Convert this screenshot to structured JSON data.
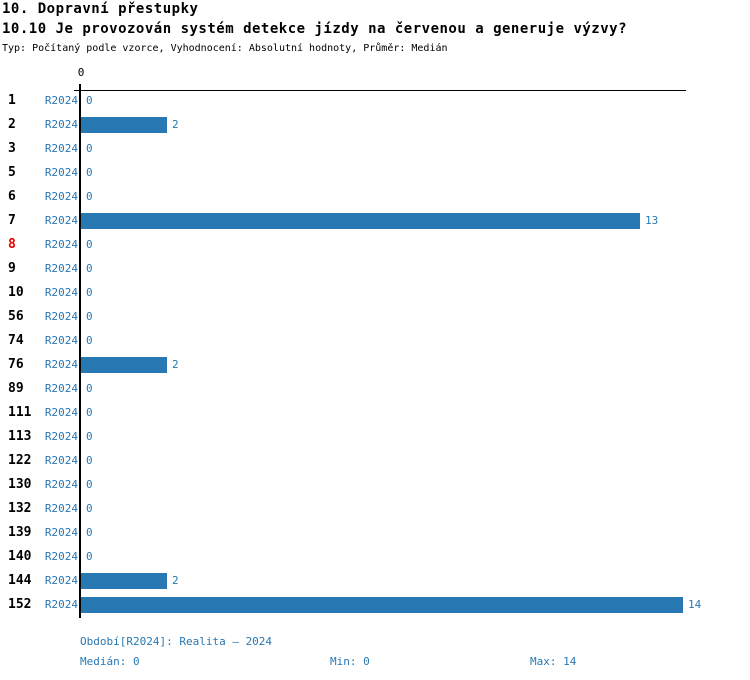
{
  "header": {
    "title": "10. Dopravní přestupky",
    "subtitle": "10.10 Je provozován systém detekce jízdy na červenou a generuje výzvy?",
    "meta": "Typ: Počítaný podle vzorce, Vyhodnocení: Absolutní hodnoty, Průměr: Medián"
  },
  "chart_data": {
    "type": "bar",
    "orientation": "horizontal",
    "title": "10.10 Je provozován systém detekce jízdy na červenou a generuje výzvy?",
    "series_label": "R2024",
    "x_tick_label": "0",
    "xlim": [
      0,
      14
    ],
    "grid": false,
    "categories": [
      "1",
      "2",
      "3",
      "5",
      "6",
      "7",
      "8",
      "9",
      "10",
      "56",
      "74",
      "76",
      "89",
      "111",
      "113",
      "122",
      "130",
      "132",
      "139",
      "140",
      "144",
      "152"
    ],
    "values": [
      0,
      2,
      0,
      0,
      0,
      13,
      0,
      0,
      0,
      0,
      0,
      2,
      0,
      0,
      0,
      0,
      0,
      0,
      0,
      0,
      2,
      14
    ],
    "highlighted_category": "8",
    "bar_color": "#2878b4"
  },
  "footer": {
    "period": "Období[R2024]: Realita – 2024",
    "median": "Medián: 0",
    "min": "Min: 0",
    "max": "Max: 14"
  },
  "colors": {
    "bar": "#2878b4",
    "blue_text": "#2878b4",
    "highlight_red": "#ee0000",
    "axis": "#000000",
    "background": "#ffffff"
  }
}
